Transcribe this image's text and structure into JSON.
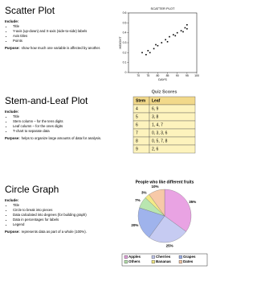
{
  "sections": [
    {
      "title": "Scatter Plot",
      "include_label": "Include:",
      "items": [
        "Title",
        "Y-axis (up-down) and X-axis (side-to-side) labels",
        "Axis titles",
        "Points"
      ],
      "purpose_label": "Purpose:",
      "purpose": "show how much one variable is affected by another.",
      "chart": {
        "type": "scatter",
        "title": "SCATTER PLOT",
        "xlabel": "DAYS",
        "ylabel": "HEIGHT",
        "xlim": [
          65,
          100
        ],
        "xticks": [
          70,
          75,
          80,
          85,
          90,
          95,
          100
        ],
        "ylim": [
          0,
          0.6
        ],
        "yticks": [
          0,
          0.1,
          0.2,
          0.3,
          0.4,
          0.5,
          0.6
        ],
        "color": "#000000",
        "x": [
          72,
          74,
          75,
          76,
          78,
          79,
          80,
          82,
          84,
          85,
          86,
          88,
          89,
          90,
          92,
          93,
          94,
          95,
          95
        ],
        "values": [
          0.2,
          0.18,
          0.22,
          0.2,
          0.24,
          0.28,
          0.27,
          0.3,
          0.33,
          0.31,
          0.36,
          0.38,
          0.37,
          0.4,
          0.42,
          0.41,
          0.45,
          0.48,
          0.44
        ]
      }
    },
    {
      "title": "Stem-and-Leaf Plot",
      "include_label": "Include:",
      "items": [
        "Title",
        "Stem column – for the tens digits",
        "Leaf column – for the ones digits",
        "T-chart to separate data"
      ],
      "purpose_label": "Purpose:",
      "purpose": "helps to organize large amounts of data for analysis.",
      "table": {
        "title": "Quiz Scores",
        "header": [
          "Stem",
          "Leaf"
        ],
        "rows": [
          [
            "4",
            "6, 9"
          ],
          [
            "5",
            "3, 8"
          ],
          [
            "6",
            "1, 4, 7"
          ],
          [
            "7",
            "0, 3, 3, 6"
          ],
          [
            "8",
            "0, 5, 7, 8"
          ],
          [
            "9",
            "2, 6"
          ]
        ]
      }
    },
    {
      "title": "Circle Graph",
      "include_label": "Include:",
      "items": [
        "Title",
        "Circle to break into pieces",
        "Data calculated into degrees (for building graph)",
        "Data in percentages for labels",
        "Legend"
      ],
      "purpose_label": "Purpose:",
      "purpose": "represents data as part of a whole (100%).",
      "chart": {
        "type": "pie",
        "title": "People who like different fruits",
        "categories": [
          "Apples",
          "Cherries",
          "Grapes",
          "Others",
          "Bananas",
          "Dates"
        ],
        "values": [
          35,
          25,
          20,
          7,
          3,
          10
        ],
        "value_labels": [
          "35%",
          "25%",
          "20%",
          "7%",
          "3%",
          "10%"
        ],
        "colors": [
          "#e9a3e3",
          "#c6cbf2",
          "#9fb3ec",
          "#b9e6b0",
          "#f3ea86",
          "#f7c9a8"
        ]
      }
    }
  ]
}
